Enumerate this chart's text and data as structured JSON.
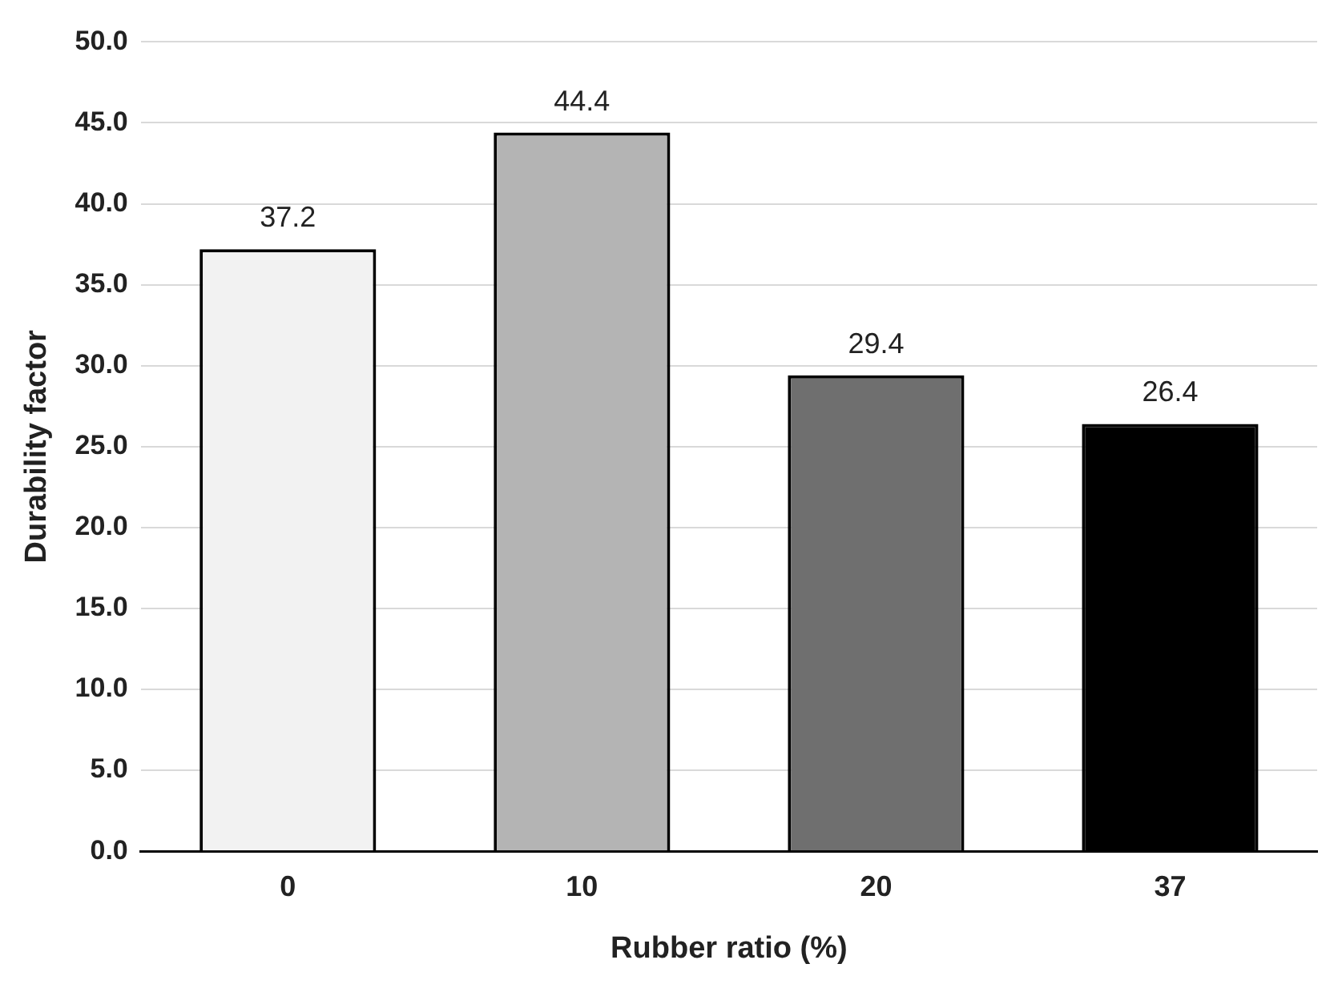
{
  "chart_data": {
    "type": "bar",
    "xlabel": "Rubber ratio (%)",
    "ylabel": "Durability factor",
    "categories": [
      "0",
      "10",
      "20",
      "37"
    ],
    "values": [
      37.2,
      44.4,
      29.4,
      26.4
    ],
    "colors": [
      "#f2f2f2",
      "#b4b4b4",
      "#6f6f6f",
      "#000000"
    ],
    "ylim": [
      0,
      50
    ],
    "yticks": [
      {
        "value": 0,
        "label": "0.0"
      },
      {
        "value": 5,
        "label": "5.0"
      },
      {
        "value": 10,
        "label": "10.0"
      },
      {
        "value": 15,
        "label": "15.0"
      },
      {
        "value": 20,
        "label": "20.0"
      },
      {
        "value": 25,
        "label": "25.0"
      },
      {
        "value": 30,
        "label": "30.0"
      },
      {
        "value": 35,
        "label": "35.0"
      },
      {
        "value": 40,
        "label": "40.0"
      },
      {
        "value": 45,
        "label": "45.0"
      },
      {
        "value": 50,
        "label": "50.0"
      }
    ],
    "grid": "y",
    "data_labels": true
  }
}
